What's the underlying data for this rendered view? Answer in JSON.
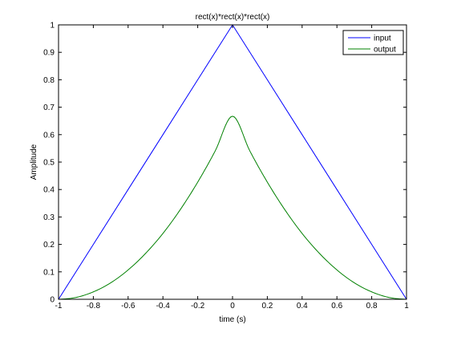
{
  "chart_data": {
    "type": "line",
    "title": "rect(x)*rect(x)*rect(x)",
    "xlabel": "time (s)",
    "ylabel": "Amplitude",
    "xlim": [
      -1,
      1
    ],
    "ylim": [
      0,
      1
    ],
    "xticks": [
      -1,
      -0.8,
      -0.6,
      -0.4,
      -0.2,
      0,
      0.2,
      0.4,
      0.6,
      0.8,
      1
    ],
    "xtick_labels": [
      "-1",
      "-0.8",
      "-0.6",
      "-0.4",
      "-0.2",
      "0",
      "0.2",
      "0.4",
      "0.6",
      "0.8",
      "1"
    ],
    "yticks": [
      0,
      0.1,
      0.2,
      0.3,
      0.4,
      0.5,
      0.6,
      0.7,
      0.8,
      0.9,
      1
    ],
    "ytick_labels": [
      "0",
      "0.1",
      "0.2",
      "0.3",
      "0.4",
      "0.5",
      "0.6",
      "0.7",
      "0.8",
      "0.9",
      "1"
    ],
    "grid": false,
    "legend_position": "top-right",
    "series": [
      {
        "name": "input",
        "color": "#0000ff",
        "x": [
          -1,
          -0.8,
          -0.6,
          -0.4,
          -0.2,
          0,
          0.2,
          0.4,
          0.6,
          0.8,
          1
        ],
        "y": [
          0,
          0.2,
          0.4,
          0.6,
          0.8,
          1,
          0.8,
          0.6,
          0.4,
          0.2,
          0
        ]
      },
      {
        "name": "output",
        "color": "#008000",
        "x": [
          -1,
          -0.9,
          -0.8,
          -0.7,
          -0.6,
          -0.5,
          -0.4,
          -0.3,
          -0.2,
          -0.1,
          0,
          0.1,
          0.2,
          0.3,
          0.4,
          0.5,
          0.6,
          0.7,
          0.8,
          0.9,
          1
        ],
        "y": [
          0,
          0.0067,
          0.027,
          0.06,
          0.107,
          0.167,
          0.24,
          0.327,
          0.427,
          0.54,
          0.667,
          0.54,
          0.427,
          0.327,
          0.24,
          0.167,
          0.107,
          0.06,
          0.027,
          0.0067,
          0
        ]
      }
    ]
  }
}
